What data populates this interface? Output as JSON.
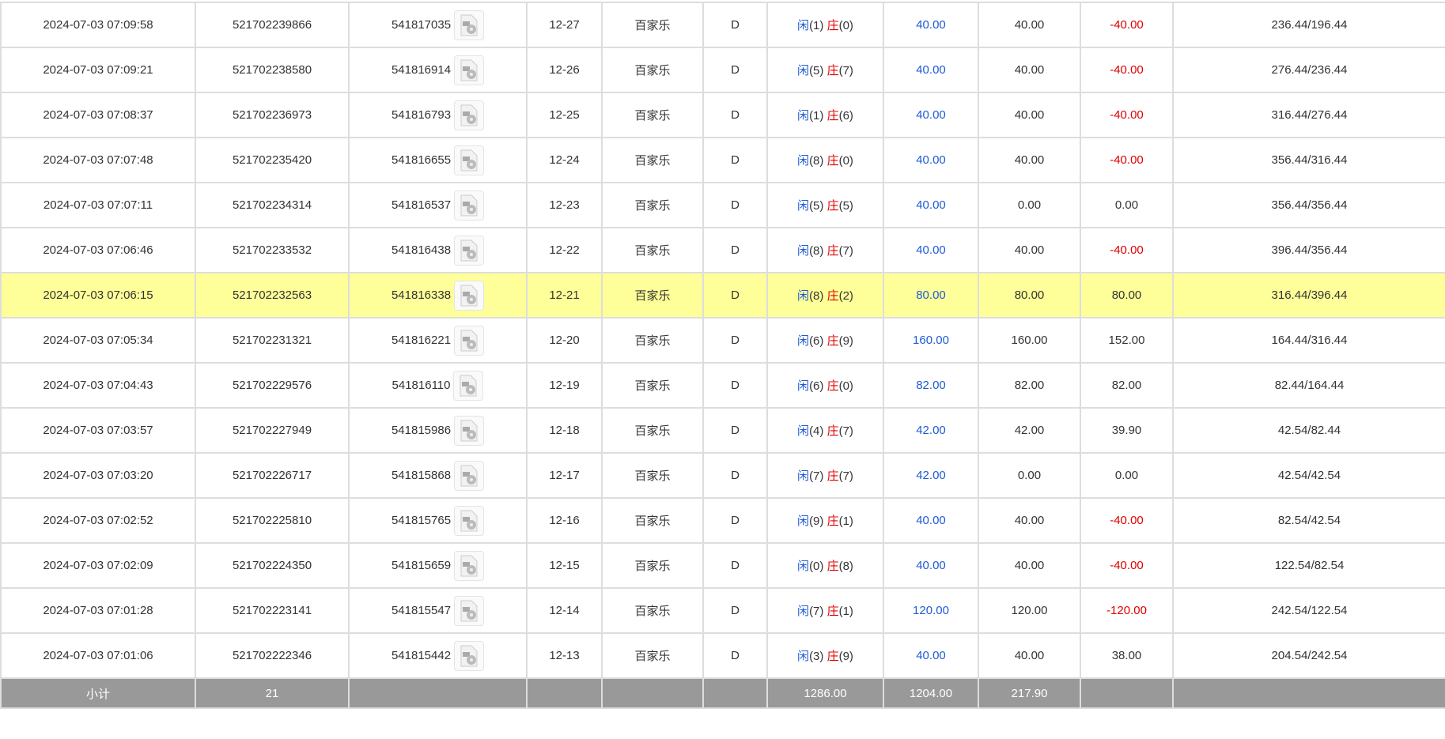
{
  "colors": {
    "blue": "#1e5bd7",
    "red": "#e00000",
    "highlight": "#ffff99",
    "subtotal_bg": "#999999"
  },
  "player_label": "闲",
  "banker_label": "庄",
  "rows": [
    {
      "time": "2024-07-03 07:09:58",
      "order": "521702239866",
      "round": "541817035",
      "shoe": "12-27",
      "game": "百家乐",
      "table": "D",
      "p": "(1)",
      "b": "(0)",
      "bet": "40.00",
      "valid": "40.00",
      "win": "-40.00",
      "bal": "236.44/196.44"
    },
    {
      "time": "2024-07-03 07:09:21",
      "order": "521702238580",
      "round": "541816914",
      "shoe": "12-26",
      "game": "百家乐",
      "table": "D",
      "p": "(5)",
      "b": "(7)",
      "bet": "40.00",
      "valid": "40.00",
      "win": "-40.00",
      "bal": "276.44/236.44"
    },
    {
      "time": "2024-07-03 07:08:37",
      "order": "521702236973",
      "round": "541816793",
      "shoe": "12-25",
      "game": "百家乐",
      "table": "D",
      "p": "(1)",
      "b": "(6)",
      "bet": "40.00",
      "valid": "40.00",
      "win": "-40.00",
      "bal": "316.44/276.44"
    },
    {
      "time": "2024-07-03 07:07:48",
      "order": "521702235420",
      "round": "541816655",
      "shoe": "12-24",
      "game": "百家乐",
      "table": "D",
      "p": "(8)",
      "b": "(0)",
      "bet": "40.00",
      "valid": "40.00",
      "win": "-40.00",
      "bal": "356.44/316.44"
    },
    {
      "time": "2024-07-03 07:07:11",
      "order": "521702234314",
      "round": "541816537",
      "shoe": "12-23",
      "game": "百家乐",
      "table": "D",
      "p": "(5)",
      "b": "(5)",
      "bet": "40.00",
      "valid": "0.00",
      "win": "0.00",
      "bal": "356.44/356.44"
    },
    {
      "time": "2024-07-03 07:06:46",
      "order": "521702233532",
      "round": "541816438",
      "shoe": "12-22",
      "game": "百家乐",
      "table": "D",
      "p": "(8)",
      "b": "(7)",
      "bet": "40.00",
      "valid": "40.00",
      "win": "-40.00",
      "bal": "396.44/356.44"
    },
    {
      "time": "2024-07-03 07:06:15",
      "order": "521702232563",
      "round": "541816338",
      "shoe": "12-21",
      "game": "百家乐",
      "table": "D",
      "p": "(8)",
      "b": "(2)",
      "bet": "80.00",
      "valid": "80.00",
      "win": "80.00",
      "bal": "316.44/396.44",
      "highlight": true
    },
    {
      "time": "2024-07-03 07:05:34",
      "order": "521702231321",
      "round": "541816221",
      "shoe": "12-20",
      "game": "百家乐",
      "table": "D",
      "p": "(6)",
      "b": "(9)",
      "bet": "160.00",
      "valid": "160.00",
      "win": "152.00",
      "bal": "164.44/316.44"
    },
    {
      "time": "2024-07-03 07:04:43",
      "order": "521702229576",
      "round": "541816110",
      "shoe": "12-19",
      "game": "百家乐",
      "table": "D",
      "p": "(6)",
      "b": "(0)",
      "bet": "82.00",
      "valid": "82.00",
      "win": "82.00",
      "bal": "82.44/164.44"
    },
    {
      "time": "2024-07-03 07:03:57",
      "order": "521702227949",
      "round": "541815986",
      "shoe": "12-18",
      "game": "百家乐",
      "table": "D",
      "p": "(4)",
      "b": "(7)",
      "bet": "42.00",
      "valid": "42.00",
      "win": "39.90",
      "bal": "42.54/82.44"
    },
    {
      "time": "2024-07-03 07:03:20",
      "order": "521702226717",
      "round": "541815868",
      "shoe": "12-17",
      "game": "百家乐",
      "table": "D",
      "p": "(7)",
      "b": "(7)",
      "bet": "42.00",
      "valid": "0.00",
      "win": "0.00",
      "bal": "42.54/42.54"
    },
    {
      "time": "2024-07-03 07:02:52",
      "order": "521702225810",
      "round": "541815765",
      "shoe": "12-16",
      "game": "百家乐",
      "table": "D",
      "p": "(9)",
      "b": "(1)",
      "bet": "40.00",
      "valid": "40.00",
      "win": "-40.00",
      "bal": "82.54/42.54"
    },
    {
      "time": "2024-07-03 07:02:09",
      "order": "521702224350",
      "round": "541815659",
      "shoe": "12-15",
      "game": "百家乐",
      "table": "D",
      "p": "(0)",
      "b": "(8)",
      "bet": "40.00",
      "valid": "40.00",
      "win": "-40.00",
      "bal": "122.54/82.54"
    },
    {
      "time": "2024-07-03 07:01:28",
      "order": "521702223141",
      "round": "541815547",
      "shoe": "12-14",
      "game": "百家乐",
      "table": "D",
      "p": "(7)",
      "b": "(1)",
      "bet": "120.00",
      "valid": "120.00",
      "win": "-120.00",
      "bal": "242.54/122.54"
    },
    {
      "time": "2024-07-03 07:01:06",
      "order": "521702222346",
      "round": "541815442",
      "shoe": "12-13",
      "game": "百家乐",
      "table": "D",
      "p": "(3)",
      "b": "(9)",
      "bet": "40.00",
      "valid": "40.00",
      "win": "38.00",
      "bal": "204.54/242.54"
    }
  ],
  "subtotal": {
    "label": "小计",
    "count": "21",
    "bet": "1286.00",
    "valid": "1204.00",
    "win": "217.90"
  }
}
